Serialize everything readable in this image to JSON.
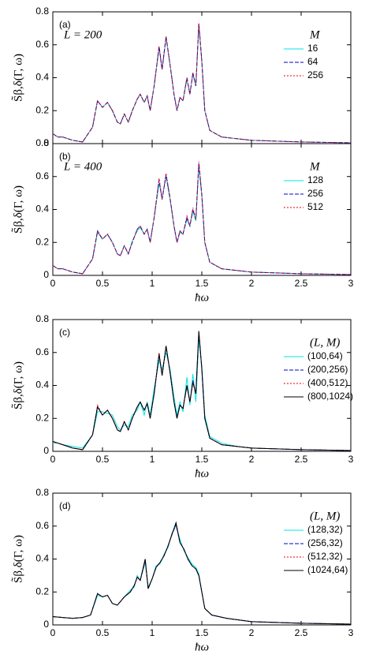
{
  "chart_data": [
    {
      "type": "line",
      "panel_label": "(a)",
      "annotation": "L = 200",
      "legend_title": "M",
      "ylabel": "S̃β,δ(Γ, ω)",
      "show_xtick_labels": false,
      "x": [
        0,
        0.05,
        0.1,
        0.2,
        0.3,
        0.4,
        0.45,
        0.5,
        0.55,
        0.6,
        0.65,
        0.68,
        0.72,
        0.76,
        0.8,
        0.85,
        0.88,
        0.92,
        0.95,
        0.98,
        1.02,
        1.07,
        1.1,
        1.14,
        1.18,
        1.22,
        1.25,
        1.28,
        1.31,
        1.35,
        1.38,
        1.41,
        1.44,
        1.47,
        1.5,
        1.53,
        1.58,
        1.7,
        1.85,
        2,
        2.5,
        3
      ],
      "xlim": [
        0,
        3
      ],
      "xticks": [
        0,
        0.5,
        1,
        1.5,
        2,
        2.5,
        3
      ],
      "ylim": [
        0,
        0.8
      ],
      "yticks": [
        0,
        0.2,
        0.4,
        0.6,
        0.8
      ],
      "series": [
        {
          "name": "16",
          "color": "#00e5e5",
          "style": "solid",
          "values": [
            0.06,
            0.04,
            0.04,
            0.02,
            0.01,
            0.1,
            0.26,
            0.22,
            0.25,
            0.2,
            0.13,
            0.12,
            0.18,
            0.13,
            0.2,
            0.27,
            0.3,
            0.25,
            0.29,
            0.2,
            0.35,
            0.58,
            0.45,
            0.64,
            0.48,
            0.3,
            0.2,
            0.28,
            0.26,
            0.39,
            0.3,
            0.42,
            0.35,
            0.72,
            0.5,
            0.2,
            0.08,
            0.04,
            0.03,
            0.02,
            0.01,
            0.005
          ]
        },
        {
          "name": "64",
          "color": "#0000cc",
          "style": "dashed",
          "values": [
            0.06,
            0.04,
            0.04,
            0.02,
            0.01,
            0.1,
            0.26,
            0.22,
            0.25,
            0.2,
            0.13,
            0.12,
            0.18,
            0.13,
            0.2,
            0.27,
            0.3,
            0.25,
            0.29,
            0.2,
            0.35,
            0.59,
            0.45,
            0.65,
            0.48,
            0.3,
            0.2,
            0.28,
            0.26,
            0.4,
            0.3,
            0.43,
            0.35,
            0.73,
            0.5,
            0.2,
            0.08,
            0.04,
            0.03,
            0.02,
            0.01,
            0.005
          ]
        },
        {
          "name": "256",
          "color": "#e60000",
          "style": "dotted",
          "values": [
            0.06,
            0.04,
            0.04,
            0.02,
            0.01,
            0.1,
            0.26,
            0.22,
            0.25,
            0.2,
            0.13,
            0.12,
            0.18,
            0.13,
            0.2,
            0.27,
            0.3,
            0.25,
            0.29,
            0.2,
            0.35,
            0.59,
            0.45,
            0.65,
            0.48,
            0.3,
            0.2,
            0.28,
            0.26,
            0.4,
            0.3,
            0.43,
            0.35,
            0.73,
            0.5,
            0.2,
            0.08,
            0.04,
            0.03,
            0.02,
            0.01,
            0.005
          ]
        }
      ]
    },
    {
      "type": "line",
      "panel_label": "(b)",
      "annotation": "L = 400",
      "legend_title": "M",
      "ylabel": "S̃β,δ(Γ, ω)",
      "xlabel": "ħω",
      "show_xtick_labels": true,
      "x": [
        0,
        0.05,
        0.1,
        0.2,
        0.3,
        0.4,
        0.45,
        0.5,
        0.55,
        0.6,
        0.65,
        0.68,
        0.72,
        0.76,
        0.8,
        0.85,
        0.88,
        0.92,
        0.95,
        0.98,
        1.02,
        1.07,
        1.1,
        1.14,
        1.18,
        1.22,
        1.25,
        1.28,
        1.31,
        1.35,
        1.38,
        1.41,
        1.44,
        1.47,
        1.5,
        1.53,
        1.58,
        1.7,
        1.85,
        2,
        2.5,
        3
      ],
      "xlim": [
        0,
        3
      ],
      "xticks": [
        0,
        0.5,
        1,
        1.5,
        2,
        2.5,
        3
      ],
      "ylim": [
        0,
        0.8
      ],
      "yticks": [
        0,
        0.2,
        0.4,
        0.6,
        0.8
      ],
      "series": [
        {
          "name": "128",
          "color": "#00e5e5",
          "style": "solid",
          "values": [
            0.06,
            0.04,
            0.04,
            0.02,
            0.01,
            0.1,
            0.26,
            0.22,
            0.25,
            0.2,
            0.13,
            0.12,
            0.18,
            0.13,
            0.21,
            0.27,
            0.29,
            0.25,
            0.28,
            0.2,
            0.35,
            0.56,
            0.47,
            0.6,
            0.46,
            0.3,
            0.2,
            0.26,
            0.25,
            0.34,
            0.3,
            0.39,
            0.33,
            0.66,
            0.48,
            0.2,
            0.08,
            0.04,
            0.03,
            0.02,
            0.01,
            0.005
          ]
        },
        {
          "name": "256",
          "color": "#0000cc",
          "style": "dashed",
          "values": [
            0.06,
            0.04,
            0.04,
            0.02,
            0.01,
            0.1,
            0.27,
            0.22,
            0.25,
            0.2,
            0.13,
            0.12,
            0.18,
            0.13,
            0.2,
            0.28,
            0.3,
            0.25,
            0.28,
            0.2,
            0.35,
            0.58,
            0.46,
            0.61,
            0.47,
            0.3,
            0.2,
            0.27,
            0.25,
            0.35,
            0.3,
            0.4,
            0.34,
            0.68,
            0.49,
            0.2,
            0.08,
            0.04,
            0.03,
            0.02,
            0.01,
            0.005
          ]
        },
        {
          "name": "512",
          "color": "#e60000",
          "style": "dotted",
          "values": [
            0.06,
            0.04,
            0.04,
            0.02,
            0.01,
            0.1,
            0.27,
            0.22,
            0.25,
            0.2,
            0.13,
            0.12,
            0.18,
            0.13,
            0.2,
            0.28,
            0.3,
            0.25,
            0.28,
            0.2,
            0.35,
            0.59,
            0.46,
            0.62,
            0.47,
            0.3,
            0.2,
            0.27,
            0.25,
            0.36,
            0.3,
            0.41,
            0.34,
            0.69,
            0.49,
            0.2,
            0.08,
            0.04,
            0.03,
            0.02,
            0.01,
            0.005
          ]
        }
      ]
    },
    {
      "type": "line",
      "panel_label": "(c)",
      "legend_title": "(L, M)",
      "ylabel": "S̃β,δ(Γ, ω)",
      "xlabel": "ħω",
      "show_xtick_labels": true,
      "x": [
        0,
        0.05,
        0.1,
        0.2,
        0.3,
        0.4,
        0.45,
        0.5,
        0.55,
        0.6,
        0.65,
        0.68,
        0.72,
        0.76,
        0.8,
        0.85,
        0.88,
        0.92,
        0.95,
        0.98,
        1.02,
        1.07,
        1.1,
        1.14,
        1.18,
        1.22,
        1.25,
        1.28,
        1.31,
        1.35,
        1.38,
        1.41,
        1.44,
        1.47,
        1.5,
        1.53,
        1.58,
        1.7,
        1.85,
        2,
        2.5,
        3
      ],
      "xlim": [
        0,
        3
      ],
      "xticks": [
        0,
        0.5,
        1,
        1.5,
        2,
        2.5,
        3
      ],
      "ylim": [
        0,
        0.8
      ],
      "yticks": [
        0,
        0.2,
        0.4,
        0.6,
        0.8
      ],
      "series": [
        {
          "name": "(100,64)",
          "color": "#00e5e5",
          "style": "solid",
          "values": [
            0.05,
            0.05,
            0.04,
            0.03,
            0.02,
            0.1,
            0.24,
            0.24,
            0.23,
            0.22,
            0.15,
            0.13,
            0.16,
            0.15,
            0.22,
            0.25,
            0.3,
            0.22,
            0.3,
            0.22,
            0.38,
            0.55,
            0.5,
            0.6,
            0.5,
            0.33,
            0.22,
            0.3,
            0.24,
            0.45,
            0.28,
            0.47,
            0.3,
            0.68,
            0.52,
            0.22,
            0.09,
            0.05,
            0.03,
            0.02,
            0.01,
            0.005
          ]
        },
        {
          "name": "(200,256)",
          "color": "#0000cc",
          "style": "dashed",
          "values": [
            0.06,
            0.05,
            0.04,
            0.02,
            0.01,
            0.1,
            0.27,
            0.22,
            0.25,
            0.2,
            0.13,
            0.12,
            0.18,
            0.13,
            0.2,
            0.27,
            0.3,
            0.25,
            0.29,
            0.2,
            0.35,
            0.59,
            0.46,
            0.64,
            0.48,
            0.3,
            0.2,
            0.28,
            0.26,
            0.4,
            0.3,
            0.43,
            0.35,
            0.72,
            0.5,
            0.2,
            0.08,
            0.04,
            0.03,
            0.02,
            0.01,
            0.005
          ]
        },
        {
          "name": "(400,512)",
          "color": "#e60000",
          "style": "dotted",
          "values": [
            0.06,
            0.05,
            0.04,
            0.02,
            0.01,
            0.1,
            0.28,
            0.22,
            0.25,
            0.2,
            0.13,
            0.12,
            0.18,
            0.13,
            0.2,
            0.27,
            0.3,
            0.25,
            0.29,
            0.2,
            0.35,
            0.6,
            0.46,
            0.63,
            0.48,
            0.3,
            0.2,
            0.28,
            0.26,
            0.39,
            0.3,
            0.42,
            0.35,
            0.73,
            0.5,
            0.2,
            0.08,
            0.04,
            0.03,
            0.02,
            0.01,
            0.005
          ]
        },
        {
          "name": "(800,1024)",
          "color": "#000000",
          "style": "solid",
          "values": [
            0.06,
            0.05,
            0.04,
            0.02,
            0.01,
            0.1,
            0.27,
            0.22,
            0.25,
            0.2,
            0.13,
            0.12,
            0.18,
            0.13,
            0.2,
            0.27,
            0.3,
            0.25,
            0.29,
            0.2,
            0.35,
            0.59,
            0.46,
            0.64,
            0.48,
            0.3,
            0.2,
            0.28,
            0.26,
            0.4,
            0.3,
            0.42,
            0.35,
            0.73,
            0.5,
            0.2,
            0.08,
            0.04,
            0.03,
            0.02,
            0.01,
            0.005
          ]
        }
      ]
    },
    {
      "type": "line",
      "panel_label": "(d)",
      "legend_title": "(L, M)",
      "ylabel": "S̃β,δ(Γ, ω)",
      "xlabel": "ħω",
      "show_xtick_labels": true,
      "x": [
        0,
        0.1,
        0.2,
        0.3,
        0.38,
        0.45,
        0.5,
        0.55,
        0.6,
        0.65,
        0.72,
        0.78,
        0.82,
        0.85,
        0.88,
        0.93,
        0.96,
        1.0,
        1.04,
        1.08,
        1.12,
        1.16,
        1.2,
        1.24,
        1.28,
        1.32,
        1.36,
        1.4,
        1.44,
        1.47,
        1.5,
        1.53,
        1.6,
        1.75,
        2,
        2.5,
        3
      ],
      "xlim": [
        0,
        3
      ],
      "xticks": [
        0,
        0.5,
        1,
        1.5,
        2,
        2.5,
        3
      ],
      "ylim": [
        0,
        0.8
      ],
      "yticks": [
        0,
        0.2,
        0.4,
        0.6,
        0.8
      ],
      "series": [
        {
          "name": "(128,32)",
          "color": "#00e5e5",
          "style": "solid",
          "values": [
            0.05,
            0.045,
            0.04,
            0.045,
            0.06,
            0.18,
            0.17,
            0.18,
            0.13,
            0.12,
            0.17,
            0.21,
            0.23,
            0.3,
            0.27,
            0.38,
            0.23,
            0.28,
            0.36,
            0.37,
            0.43,
            0.47,
            0.56,
            0.6,
            0.52,
            0.45,
            0.41,
            0.37,
            0.35,
            0.31,
            0.2,
            0.1,
            0.06,
            0.04,
            0.02,
            0.01,
            0.005
          ]
        },
        {
          "name": "(256,32)",
          "color": "#0000cc",
          "style": "dashed",
          "values": [
            0.05,
            0.045,
            0.04,
            0.045,
            0.06,
            0.19,
            0.17,
            0.18,
            0.13,
            0.12,
            0.17,
            0.2,
            0.24,
            0.29,
            0.27,
            0.39,
            0.22,
            0.28,
            0.35,
            0.38,
            0.42,
            0.48,
            0.55,
            0.61,
            0.5,
            0.46,
            0.4,
            0.36,
            0.34,
            0.3,
            0.2,
            0.1,
            0.06,
            0.04,
            0.02,
            0.01,
            0.005
          ]
        },
        {
          "name": "(512,32)",
          "color": "#e60000",
          "style": "dotted",
          "values": [
            0.05,
            0.045,
            0.04,
            0.045,
            0.06,
            0.19,
            0.17,
            0.18,
            0.13,
            0.12,
            0.17,
            0.2,
            0.24,
            0.29,
            0.27,
            0.4,
            0.22,
            0.28,
            0.35,
            0.38,
            0.42,
            0.48,
            0.55,
            0.62,
            0.5,
            0.46,
            0.4,
            0.36,
            0.34,
            0.3,
            0.2,
            0.1,
            0.06,
            0.04,
            0.02,
            0.01,
            0.005
          ]
        },
        {
          "name": "(1024,64)",
          "color": "#000000",
          "style": "solid",
          "values": [
            0.05,
            0.045,
            0.04,
            0.045,
            0.06,
            0.19,
            0.17,
            0.18,
            0.13,
            0.12,
            0.17,
            0.2,
            0.24,
            0.29,
            0.27,
            0.4,
            0.22,
            0.28,
            0.35,
            0.38,
            0.42,
            0.48,
            0.55,
            0.62,
            0.5,
            0.46,
            0.4,
            0.36,
            0.34,
            0.3,
            0.2,
            0.1,
            0.06,
            0.04,
            0.02,
            0.01,
            0.005
          ]
        }
      ]
    }
  ]
}
